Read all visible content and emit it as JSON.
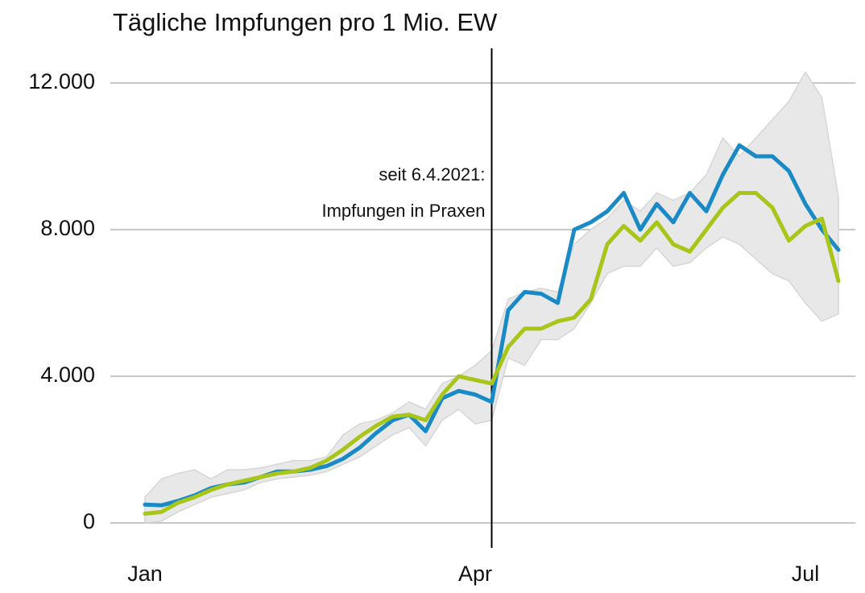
{
  "chart_data": {
    "type": "line",
    "title": "Tägliche Impfungen pro 1 Mio. EW",
    "annotation": [
      "seit 6.4.2021:",
      "Impfungen in Praxen"
    ],
    "categories": [
      "Jan",
      null,
      null,
      null,
      null,
      null,
      null,
      null,
      null,
      null,
      null,
      null,
      null,
      null,
      null,
      null,
      null,
      null,
      null,
      null,
      "Apr",
      null,
      null,
      null,
      null,
      null,
      null,
      null,
      null,
      null,
      null,
      null,
      null,
      null,
      null,
      null,
      null,
      null,
      null,
      null,
      "Jul",
      null,
      null
    ],
    "series": [
      {
        "color": "#1a8ac6",
        "values": [
          500,
          480,
          600,
          750,
          950,
          1050,
          1100,
          1250,
          1400,
          1400,
          1450,
          1550,
          1750,
          2050,
          2450,
          2800,
          2950,
          2500,
          3400,
          3600,
          3500,
          3300,
          5800,
          6300,
          6250,
          6000,
          8000,
          8200,
          8500,
          9000,
          8000,
          8700,
          8200,
          9000,
          8500,
          9500,
          10300,
          10000,
          10000,
          9600,
          8700,
          8000,
          7450
        ]
      },
      {
        "color": "#a8c51a",
        "values": [
          250,
          300,
          550,
          700,
          900,
          1050,
          1150,
          1250,
          1350,
          1400,
          1500,
          1700,
          2000,
          2350,
          2650,
          2900,
          2950,
          2800,
          3500,
          4000,
          3900,
          3800,
          4800,
          5300,
          5300,
          5500,
          5600,
          6100,
          7600,
          8100,
          7700,
          8200,
          7600,
          7400,
          8000,
          8600,
          9000,
          9000,
          8600,
          7700,
          8100,
          8300,
          6600
        ]
      }
    ],
    "band": {
      "color": "#e8e8e8",
      "high": [
        700,
        1200,
        1350,
        1450,
        1200,
        1450,
        1450,
        1500,
        1600,
        1700,
        1700,
        1800,
        2400,
        2700,
        2800,
        3000,
        3300,
        3100,
        3800,
        4000,
        4300,
        4700,
        6100,
        6300,
        6400,
        6300,
        7600,
        8000,
        8300,
        8800,
        8500,
        9000,
        8800,
        9000,
        9500,
        10500,
        10000,
        10500,
        11000,
        11500,
        12300,
        11600,
        8900
      ],
      "low": [
        0,
        50,
        300,
        500,
        700,
        800,
        900,
        1100,
        1200,
        1250,
        1300,
        1400,
        1600,
        1800,
        2100,
        2400,
        2600,
        2100,
        2800,
        3100,
        2700,
        2800,
        4500,
        4300,
        5000,
        5000,
        5300,
        6000,
        6800,
        7000,
        7000,
        7500,
        7000,
        7100,
        7500,
        7800,
        7600,
        7200,
        6800,
        6600,
        6000,
        5500,
        5700
      ]
    },
    "ylim": [
      0,
      12000
    ],
    "yticks": [
      {
        "value": 0,
        "label": "0"
      },
      {
        "value": 4000,
        "label": "4.000"
      },
      {
        "value": 8000,
        "label": "8.000"
      },
      {
        "value": 12000,
        "label": "12.000"
      }
    ],
    "grid": true
  }
}
